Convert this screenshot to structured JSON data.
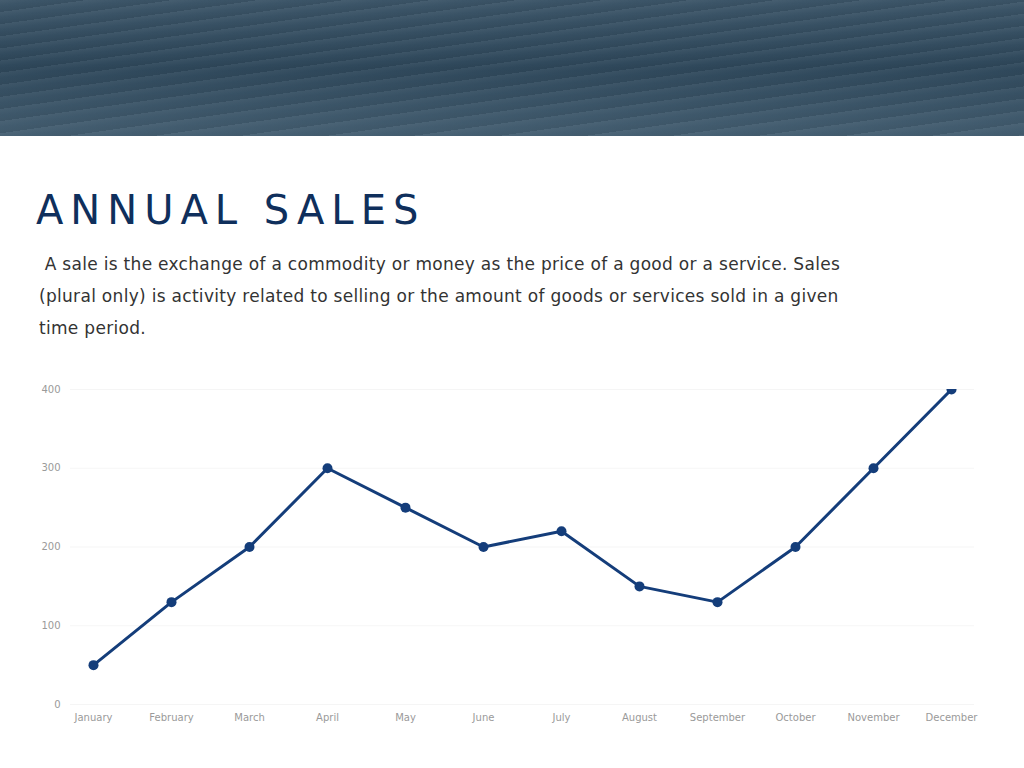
{
  "chart_data": {
    "type": "line",
    "title": "ANNUAL SALES",
    "subtitle": " A sale is the exchange of a commodity or money as the price of a good or a service. Sales (plural only) is activity related to selling or the amount of goods or services sold in a given time period.",
    "categories": [
      "January",
      "February",
      "March",
      "April",
      "May",
      "June",
      "July",
      "August",
      "September",
      "October",
      "November",
      "December"
    ],
    "values": [
      50,
      130,
      200,
      300,
      250,
      200,
      220,
      150,
      130,
      200,
      300,
      400
    ],
    "color": "#143d7a",
    "marker": "circle",
    "line_style": "solid",
    "ylim": [
      0,
      400
    ],
    "yticks": [
      0,
      100,
      200,
      300,
      400
    ],
    "grid": true
  }
}
